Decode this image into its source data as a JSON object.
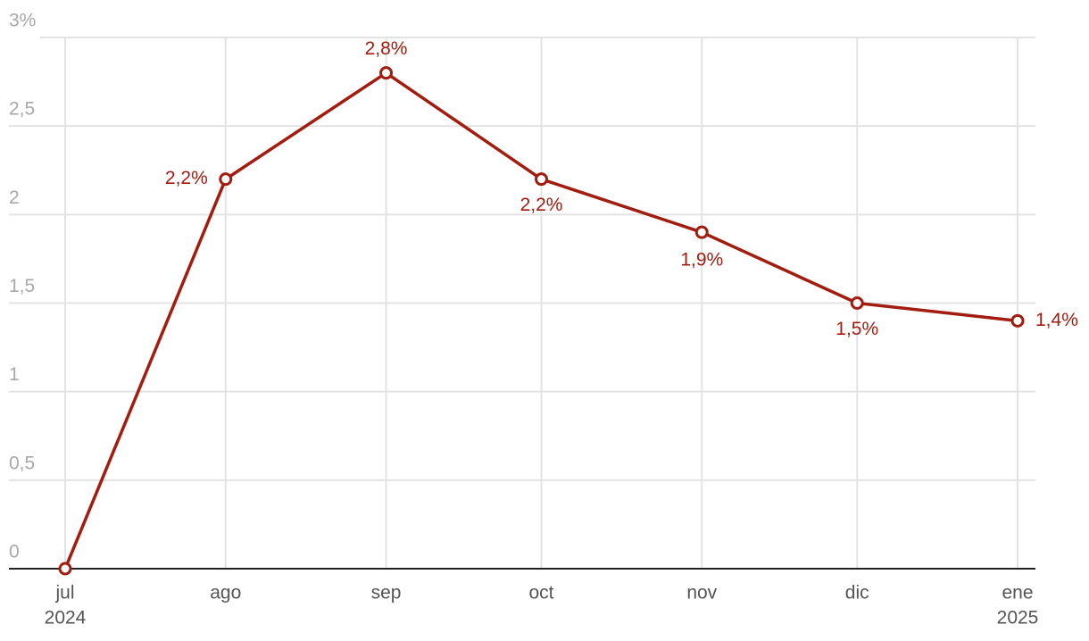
{
  "chart_data": {
    "type": "line",
    "x": [
      "2024-07",
      "2024-08",
      "2024-09",
      "2024-10",
      "2024-11",
      "2024-12",
      "2025-01"
    ],
    "xlim": [
      "2024-07",
      "2025-01"
    ],
    "xticks": [
      {
        "value": "2024-07",
        "label": [
          "jul",
          "2024"
        ]
      },
      {
        "value": "2024-08",
        "label": [
          "ago"
        ]
      },
      {
        "value": "2024-09",
        "label": [
          "sep"
        ]
      },
      {
        "value": "2024-10",
        "label": [
          "oct"
        ]
      },
      {
        "value": "2024-11",
        "label": [
          "nov"
        ]
      },
      {
        "value": "2024-12",
        "label": [
          "dic"
        ]
      },
      {
        "value": "2025-01",
        "label": [
          "ene",
          "2025"
        ]
      }
    ],
    "series": [
      {
        "color": "#a21d0f",
        "values": [
          0,
          2.2,
          2.8,
          2.2,
          1.9,
          1.5,
          1.4
        ],
        "value_labels": [
          null,
          "2,2%",
          "2,8%",
          "2,2%",
          "1,9%",
          "1,5%",
          "1,4%"
        ]
      }
    ],
    "ylim": [
      0,
      3
    ],
    "yticks": [
      0,
      {
        "value": 0.5,
        "label": "0,5"
      },
      1,
      {
        "value": 1.5,
        "label": "1,5"
      },
      2,
      {
        "value": 2.5,
        "label": "2,5"
      },
      {
        "value": 3,
        "label": "3%"
      }
    ],
    "grid": true
  }
}
